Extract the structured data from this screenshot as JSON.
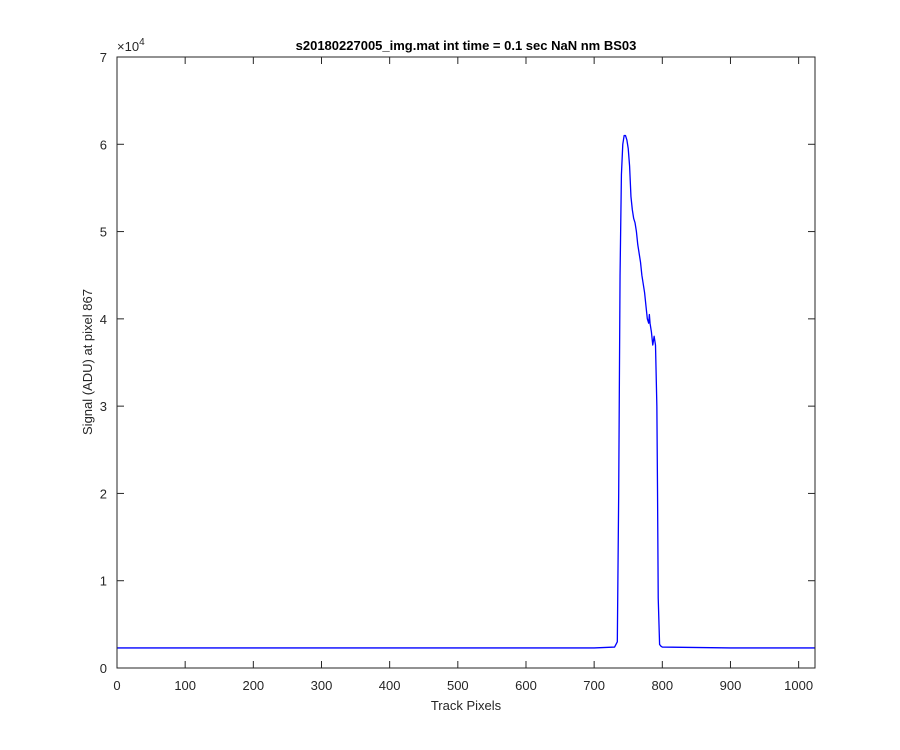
{
  "chart_data": {
    "type": "line",
    "title": "s20180227005_img.mat int time = 0.1 sec  NaN nm BS03",
    "xlabel": "Track Pixels",
    "ylabel": "Signal (ADU) at pixel 867",
    "xlim": [
      0,
      1024
    ],
    "ylim": [
      0,
      70000
    ],
    "xticks": [
      0,
      100,
      200,
      300,
      400,
      500,
      600,
      700,
      800,
      900,
      1000
    ],
    "yticks": [
      0,
      10000,
      20000,
      30000,
      40000,
      50000,
      60000,
      70000
    ],
    "ytick_labels": [
      "0",
      "1",
      "2",
      "3",
      "4",
      "5",
      "6",
      "7"
    ],
    "y_exponent_label": "×10",
    "y_exponent_power": "4",
    "grid": false,
    "legend": "none",
    "series": [
      {
        "color": "#0000ff",
        "x": [
          0,
          100,
          200,
          300,
          400,
          500,
          600,
          700,
          730,
          734,
          736,
          738,
          740,
          742,
          744,
          746,
          748,
          750,
          752,
          754,
          756,
          758,
          760,
          762,
          764,
          766,
          768,
          770,
          772,
          774,
          776,
          778,
          780,
          781,
          782,
          784,
          786,
          788,
          789,
          790,
          792,
          793,
          794,
          796,
          798,
          800,
          900,
          1024
        ],
        "y": [
          2300,
          2300,
          2300,
          2300,
          2300,
          2300,
          2300,
          2300,
          2400,
          3000,
          20000,
          45000,
          56500,
          60000,
          61000,
          61000,
          60500,
          59500,
          57500,
          54000,
          52500,
          51500,
          51000,
          50000,
          48500,
          47500,
          46500,
          45000,
          44000,
          43000,
          41500,
          40000,
          39500,
          40500,
          39500,
          38500,
          37000,
          38000,
          37500,
          37000,
          30000,
          20000,
          8000,
          2700,
          2500,
          2400,
          2300,
          2300
        ]
      }
    ]
  }
}
